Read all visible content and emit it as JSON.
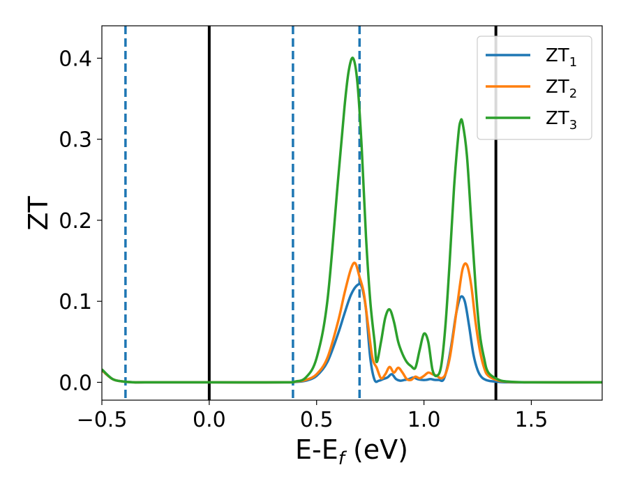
{
  "chart_data": {
    "type": "line",
    "xlabel": {
      "main": "E-E",
      "sub": "f",
      "unit": " (eV)"
    },
    "ylabel": "ZT",
    "xlim": [
      -0.5,
      1.83
    ],
    "ylim": [
      -0.022,
      0.44
    ],
    "xticks": [
      -0.5,
      0.0,
      0.5,
      1.0,
      1.5
    ],
    "xtick_labels": [
      "−0.5",
      "0.0",
      "0.5",
      "1.0",
      "1.5"
    ],
    "yticks": [
      0.0,
      0.1,
      0.2,
      0.3,
      0.4
    ],
    "ytick_labels": [
      "0.0",
      "0.1",
      "0.2",
      "0.3",
      "0.4"
    ],
    "grid": false,
    "legend_position": "top-right",
    "vlines": [
      {
        "x": -0.39,
        "style": "dashed",
        "color": "#1f77b4"
      },
      {
        "x": 0.0,
        "style": "solid",
        "color": "#000000"
      },
      {
        "x": 0.39,
        "style": "dashed",
        "color": "#1f77b4"
      },
      {
        "x": 0.7,
        "style": "dashed",
        "color": "#1f77b4"
      },
      {
        "x": 1.335,
        "style": "solid",
        "color": "#000000"
      }
    ],
    "series": [
      {
        "name": "ZT",
        "sub": "1",
        "color": "#1f77b4",
        "x": [
          -0.5,
          -0.45,
          -0.4,
          -0.35,
          -0.3,
          0.0,
          0.35,
          0.4,
          0.45,
          0.5,
          0.55,
          0.6,
          0.63,
          0.66,
          0.69,
          0.71,
          0.73,
          0.75,
          0.77,
          0.79,
          0.81,
          0.83,
          0.85,
          0.87,
          0.89,
          0.91,
          0.93,
          0.95,
          0.97,
          0.99,
          1.01,
          1.03,
          1.05,
          1.07,
          1.09,
          1.11,
          1.13,
          1.15,
          1.17,
          1.19,
          1.21,
          1.23,
          1.25,
          1.27,
          1.3,
          1.35,
          1.4,
          1.5,
          1.83
        ],
        "y": [
          0.015,
          0.004,
          0.001,
          0.0,
          0.0,
          0.0,
          0.0,
          0.0005,
          0.002,
          0.008,
          0.025,
          0.06,
          0.085,
          0.108,
          0.12,
          0.118,
          0.09,
          0.03,
          0.003,
          0.002,
          0.004,
          0.006,
          0.01,
          0.004,
          0.002,
          0.003,
          0.004,
          0.006,
          0.004,
          0.003,
          0.003,
          0.004,
          0.003,
          0.003,
          0.003,
          0.02,
          0.05,
          0.085,
          0.105,
          0.1,
          0.07,
          0.035,
          0.015,
          0.006,
          0.002,
          0.0005,
          0.0,
          0.0,
          0.0
        ]
      },
      {
        "name": "ZT",
        "sub": "2",
        "color": "#ff7f0e",
        "x": [
          -0.5,
          -0.45,
          -0.4,
          -0.35,
          -0.3,
          0.0,
          0.35,
          0.4,
          0.45,
          0.5,
          0.55,
          0.6,
          0.63,
          0.66,
          0.68,
          0.7,
          0.72,
          0.74,
          0.76,
          0.78,
          0.8,
          0.82,
          0.84,
          0.86,
          0.88,
          0.9,
          0.92,
          0.94,
          0.96,
          0.98,
          1.0,
          1.02,
          1.04,
          1.06,
          1.08,
          1.1,
          1.12,
          1.14,
          1.16,
          1.18,
          1.2,
          1.22,
          1.24,
          1.26,
          1.28,
          1.3,
          1.35,
          1.4,
          1.5,
          1.83
        ],
        "y": [
          0.015,
          0.004,
          0.001,
          0.0,
          0.0,
          0.0,
          0.0,
          0.0008,
          0.003,
          0.01,
          0.03,
          0.075,
          0.11,
          0.14,
          0.147,
          0.13,
          0.11,
          0.07,
          0.03,
          0.018,
          0.005,
          0.01,
          0.019,
          0.012,
          0.018,
          0.012,
          0.004,
          0.003,
          0.007,
          0.005,
          0.008,
          0.012,
          0.01,
          0.008,
          0.005,
          0.01,
          0.03,
          0.065,
          0.105,
          0.14,
          0.145,
          0.12,
          0.075,
          0.04,
          0.018,
          0.008,
          0.002,
          0.0005,
          0.0,
          0.0
        ]
      },
      {
        "name": "ZT",
        "sub": "3",
        "color": "#2ca02c",
        "x": [
          -0.5,
          -0.45,
          -0.4,
          -0.35,
          -0.3,
          0.0,
          0.35,
          0.4,
          0.45,
          0.5,
          0.55,
          0.6,
          0.63,
          0.65,
          0.67,
          0.69,
          0.71,
          0.73,
          0.75,
          0.77,
          0.78,
          0.8,
          0.82,
          0.84,
          0.86,
          0.88,
          0.9,
          0.92,
          0.94,
          0.96,
          0.98,
          1.0,
          1.02,
          1.04,
          1.06,
          1.08,
          1.1,
          1.12,
          1.14,
          1.16,
          1.17,
          1.18,
          1.2,
          1.22,
          1.24,
          1.26,
          1.28,
          1.3,
          1.35,
          1.4,
          1.5,
          1.83
        ],
        "y": [
          0.016,
          0.004,
          0.001,
          0.0,
          0.0,
          0.0,
          0.0,
          0.001,
          0.006,
          0.03,
          0.1,
          0.25,
          0.34,
          0.385,
          0.4,
          0.37,
          0.29,
          0.18,
          0.1,
          0.05,
          0.025,
          0.05,
          0.08,
          0.09,
          0.075,
          0.05,
          0.035,
          0.025,
          0.02,
          0.018,
          0.04,
          0.06,
          0.05,
          0.015,
          0.008,
          0.02,
          0.07,
          0.15,
          0.24,
          0.305,
          0.322,
          0.32,
          0.28,
          0.2,
          0.12,
          0.06,
          0.03,
          0.012,
          0.003,
          0.0008,
          0.0,
          0.0
        ]
      }
    ]
  }
}
